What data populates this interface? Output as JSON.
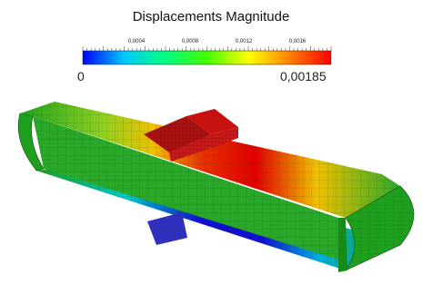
{
  "legend": {
    "title": "Displacements Magnitude",
    "min_label": "0",
    "max_label": "0,00185",
    "range": [
      0,
      0.00185
    ],
    "tick_labels": [
      {
        "value": 0.0004,
        "text": "0,0004"
      },
      {
        "value": 0.0008,
        "text": "0,0008"
      },
      {
        "value": 0.0012,
        "text": "0,0012"
      },
      {
        "value": 0.0016,
        "text": "0,0016"
      }
    ],
    "colormap": [
      "#0000ff",
      "#00c8ff",
      "#00ff80",
      "#40ff00",
      "#ffff00",
      "#ff8000",
      "#ff0000"
    ]
  },
  "model": {
    "colors": {
      "high": "#e00000",
      "mid": "#f0c000",
      "low": "#1ea01e",
      "min": "#1010d0",
      "block": "#b01010",
      "block_bottom": "#3030c0"
    }
  }
}
